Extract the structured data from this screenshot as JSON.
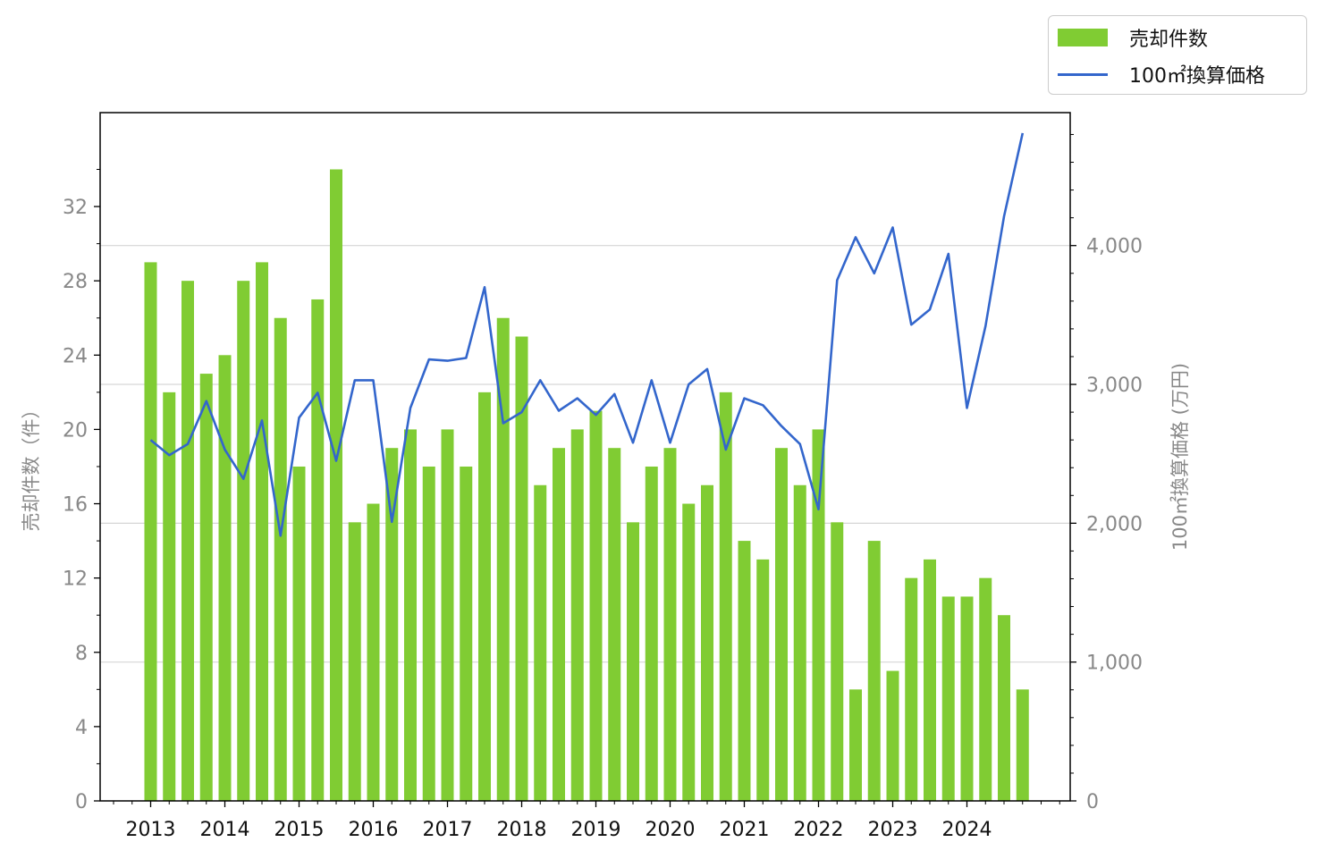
{
  "chart_data": {
    "type": "bar",
    "categories": [
      "2013",
      "2013",
      "2013",
      "2013",
      "2014",
      "2014",
      "2014",
      "2014",
      "2015",
      "2015",
      "2015",
      "2015",
      "2016",
      "2016",
      "2016",
      "2016",
      "2017",
      "2017",
      "2017",
      "2017",
      "2018",
      "2018",
      "2018",
      "2018",
      "2019",
      "2019",
      "2019",
      "2019",
      "2020",
      "2020",
      "2020",
      "2020",
      "2021",
      "2021",
      "2021",
      "2021",
      "2022",
      "2022",
      "2022",
      "2022",
      "2023",
      "2023",
      "2023",
      "2023",
      "2024",
      "2024",
      "2024",
      "2024"
    ],
    "year_ticks": [
      "2013",
      "2014",
      "2015",
      "2016",
      "2017",
      "2018",
      "2019",
      "2020",
      "2021",
      "2022",
      "2023",
      "2024"
    ],
    "series": [
      {
        "name": "売却件数",
        "type": "bar",
        "axis": "left",
        "color": "#80cc33",
        "values": [
          29,
          22,
          28,
          23,
          24,
          28,
          29,
          26,
          18,
          27,
          34,
          15,
          16,
          19,
          20,
          18,
          20,
          18,
          22,
          26,
          25,
          17,
          19,
          20,
          21,
          19,
          15,
          18,
          19,
          16,
          17,
          22,
          14,
          13,
          19,
          17,
          20,
          15,
          6,
          14,
          7,
          12,
          13,
          11,
          11,
          12,
          10,
          6
        ]
      },
      {
        "name": "100㎡換算価格",
        "type": "line",
        "axis": "right",
        "color": "#3366cc",
        "values": [
          2600,
          2490,
          2570,
          2880,
          2530,
          2320,
          2740,
          1910,
          2760,
          2940,
          2450,
          3030,
          3030,
          2010,
          2830,
          3180,
          3170,
          3190,
          3700,
          2720,
          2800,
          3030,
          2810,
          2900,
          2780,
          2930,
          2580,
          3030,
          2580,
          3000,
          3110,
          2530,
          2900,
          2850,
          2700,
          2570,
          2100,
          3750,
          4060,
          3800,
          4130,
          3430,
          3540,
          3940,
          2830,
          3420,
          4210,
          4810
        ]
      }
    ],
    "left_axis": {
      "label": "売却件数（件）",
      "ylim": [
        0,
        36
      ],
      "ticks": [
        "0",
        "4",
        "8",
        "12",
        "16",
        "20",
        "24",
        "28",
        "32"
      ]
    },
    "right_axis": {
      "label": "100㎡換算価格 (万円)",
      "ylim": [
        0,
        4950
      ],
      "ticks": [
        "0",
        "1,000",
        "2,000",
        "3,000",
        "4,000"
      ]
    },
    "grid": "horizontal, right axis major ticks",
    "legend_position": "top-right, outside plot"
  }
}
